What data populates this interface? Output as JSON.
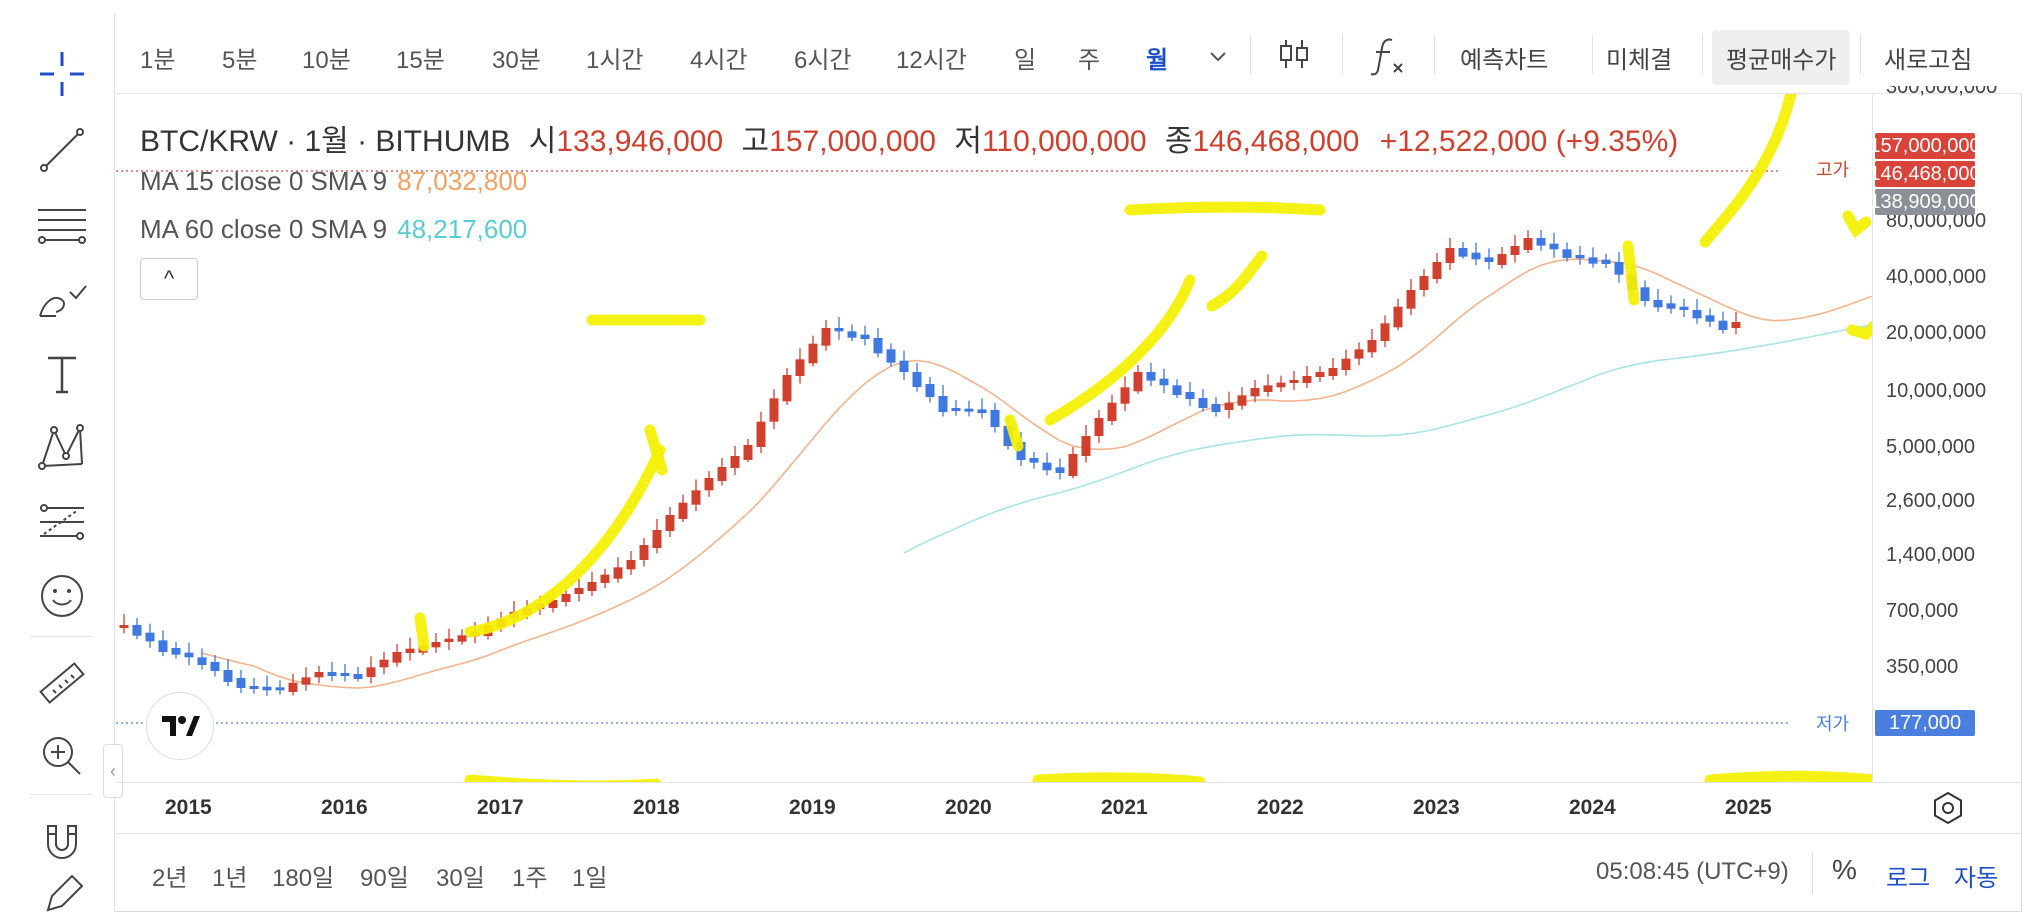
{
  "timeframes": [
    "1분",
    "5분",
    "10분",
    "15분",
    "30분",
    "1시간",
    "4시간",
    "6시간",
    "12시간",
    "일",
    "주",
    "월"
  ],
  "active_timeframe": "월",
  "toolbar": {
    "forecast": "예측차트",
    "unfilled": "미체결",
    "avg_price": "평균매수가",
    "refresh": "새로고침"
  },
  "legend": {
    "symbol": "BTC/KRW · 1월 · BITHUMB",
    "open_label": "시",
    "open": "133,946,000",
    "high_label": "고",
    "high": "157,000,000",
    "low_label": "저",
    "low": "110,000,000",
    "close_label": "종",
    "close": "146,468,000",
    "change": "+12,522,000 (+9.35%)",
    "ma1_label": "MA 15 close 0 SMA 9",
    "ma1_value": "87,032,800",
    "ma2_label": "MA 60 close 0 SMA 9",
    "ma2_value": "48,217,600",
    "collapse": "^"
  },
  "price_axis": {
    "ticks": [
      "300,000,000",
      "80,000,000",
      "40,000,000",
      "20,000,000",
      "10,000,000",
      "5,000,000",
      "2,600,000",
      "1,400,000",
      "700,000",
      "350,000"
    ],
    "high_badge": "157,000,000",
    "close_badge": "146,468,000",
    "avg_badge": "138,909,000",
    "low_badge": "177,000",
    "high_word": "고가",
    "low_word": "저가"
  },
  "time_axis": [
    "2015",
    "2016",
    "2017",
    "2018",
    "2019",
    "2020",
    "2021",
    "2022",
    "2023",
    "2024",
    "2025"
  ],
  "ranges": [
    "2년",
    "1년",
    "180일",
    "90일",
    "30일",
    "1주",
    "1일"
  ],
  "clock": "05:08:45 (UTC+9)",
  "bottom_options": {
    "percent": "%",
    "log": "로그",
    "auto": "자동"
  },
  "colors": {
    "up": "#d0402f",
    "down": "#3f78e0",
    "ma15": "#f2b48c",
    "ma60": "#a8e3e6",
    "accent": "#1c4fc8",
    "annotation": "#f5f000"
  },
  "icons": [
    "crosshair-icon",
    "trend-line-icon",
    "horizontal-lines-icon",
    "brush-icon",
    "text-icon",
    "pattern-icon",
    "fib-icon",
    "emoji-icon",
    "ruler-icon",
    "zoom-icon",
    "magnet-icon",
    "pencil-lock-icon"
  ]
}
